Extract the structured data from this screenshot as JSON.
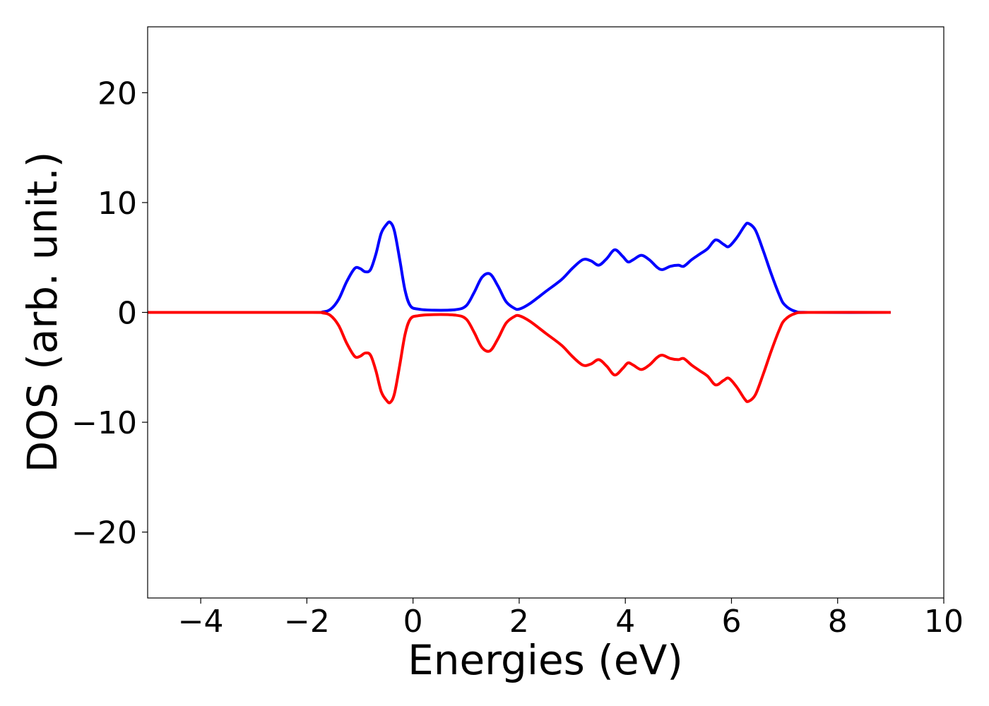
{
  "chart_data": {
    "type": "line",
    "title": "",
    "xlabel": "Energies (eV)",
    "ylabel": "DOS (arb. unit.)",
    "xlim": [
      -5,
      10
    ],
    "ylim": [
      -26,
      26
    ],
    "xticks": [
      -4,
      -2,
      0,
      2,
      4,
      6,
      8,
      10
    ],
    "xtick_labels": [
      "−4",
      "−2",
      "0",
      "2",
      "4",
      "6",
      "8",
      "10"
    ],
    "yticks": [
      -20,
      -10,
      0,
      10,
      20
    ],
    "ytick_labels": [
      "−20",
      "−10",
      "0",
      "10",
      "20"
    ],
    "grid": false,
    "legend": "none",
    "series": [
      {
        "color": "#0000ff",
        "x": [
          -5,
          -2,
          -1.7,
          -1.55,
          -1.4,
          -1.25,
          -1.1,
          -1.0,
          -0.9,
          -0.8,
          -0.7,
          -0.6,
          -0.5,
          -0.43,
          -0.35,
          -0.25,
          -0.15,
          -0.05,
          0.1,
          0.4,
          0.8,
          1.0,
          1.15,
          1.3,
          1.45,
          1.6,
          1.75,
          1.9,
          2.0,
          2.2,
          2.5,
          2.8,
          3.0,
          3.2,
          3.35,
          3.5,
          3.65,
          3.8,
          3.95,
          4.05,
          4.15,
          4.3,
          4.45,
          4.6,
          4.7,
          4.85,
          5.0,
          5.1,
          5.25,
          5.4,
          5.55,
          5.7,
          5.85,
          5.95,
          6.1,
          6.25,
          6.32,
          6.45,
          6.6,
          6.75,
          6.9,
          7.0,
          7.2,
          7.5,
          9.0
        ],
        "y": [
          0,
          0,
          0.05,
          0.3,
          1.2,
          2.8,
          4.0,
          4.0,
          3.7,
          3.9,
          5.3,
          7.2,
          8.0,
          8.2,
          7.4,
          4.8,
          2.0,
          0.6,
          0.3,
          0.2,
          0.25,
          0.6,
          1.8,
          3.2,
          3.5,
          2.4,
          1.0,
          0.4,
          0.3,
          0.8,
          1.9,
          3.0,
          4.0,
          4.8,
          4.7,
          4.3,
          4.9,
          5.7,
          5.1,
          4.6,
          4.8,
          5.2,
          4.8,
          4.1,
          3.9,
          4.2,
          4.3,
          4.2,
          4.8,
          5.3,
          5.8,
          6.6,
          6.2,
          6.0,
          6.8,
          7.9,
          8.1,
          7.5,
          5.6,
          3.5,
          1.6,
          0.7,
          0.1,
          0,
          0
        ]
      },
      {
        "color": "#ff0000",
        "x": [
          -5,
          -2,
          -1.7,
          -1.55,
          -1.4,
          -1.25,
          -1.1,
          -1.0,
          -0.9,
          -0.8,
          -0.7,
          -0.6,
          -0.5,
          -0.43,
          -0.35,
          -0.25,
          -0.15,
          -0.05,
          0.1,
          0.4,
          0.8,
          1.0,
          1.15,
          1.3,
          1.45,
          1.6,
          1.75,
          1.9,
          2.0,
          2.2,
          2.5,
          2.8,
          3.0,
          3.2,
          3.35,
          3.5,
          3.65,
          3.8,
          3.95,
          4.05,
          4.15,
          4.3,
          4.45,
          4.6,
          4.7,
          4.85,
          5.0,
          5.1,
          5.25,
          5.4,
          5.55,
          5.7,
          5.85,
          5.95,
          6.1,
          6.25,
          6.32,
          6.45,
          6.6,
          6.75,
          6.9,
          7.0,
          7.2,
          7.5,
          9.0
        ],
        "y": [
          0,
          0,
          -0.05,
          -0.3,
          -1.2,
          -2.8,
          -4.0,
          -4.0,
          -3.7,
          -3.9,
          -5.3,
          -7.2,
          -8.0,
          -8.2,
          -7.4,
          -4.8,
          -2.0,
          -0.6,
          -0.3,
          -0.2,
          -0.25,
          -0.6,
          -1.8,
          -3.2,
          -3.5,
          -2.4,
          -1.0,
          -0.4,
          -0.3,
          -0.8,
          -1.9,
          -3.0,
          -4.0,
          -4.8,
          -4.7,
          -4.3,
          -4.9,
          -5.7,
          -5.1,
          -4.6,
          -4.8,
          -5.2,
          -4.8,
          -4.1,
          -3.9,
          -4.2,
          -4.3,
          -4.2,
          -4.8,
          -5.3,
          -5.8,
          -6.6,
          -6.2,
          -6.0,
          -6.8,
          -7.9,
          -8.1,
          -7.5,
          -5.6,
          -3.5,
          -1.6,
          -0.7,
          -0.1,
          0,
          0
        ]
      }
    ]
  }
}
